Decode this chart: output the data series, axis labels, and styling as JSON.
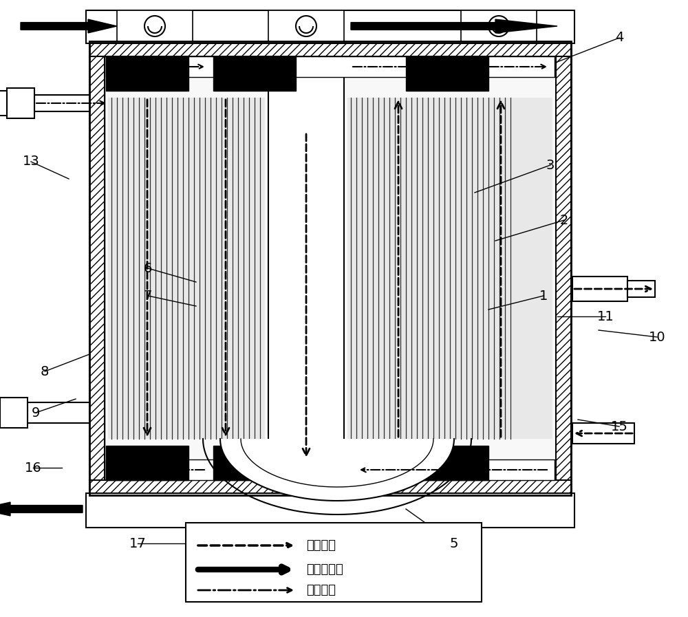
{
  "bg": "#ffffff",
  "fw": 10.0,
  "fh": 8.97,
  "legend": [
    {
      "style": "dashed",
      "label": "血液流向",
      "lw": 2.5
    },
    {
      "style": "solid",
      "label": "变温水流向",
      "lw": 5
    },
    {
      "style": "dashdot",
      "label": "气体流向",
      "lw": 2.0
    }
  ],
  "label_fs": 14,
  "legend_fs": 13
}
